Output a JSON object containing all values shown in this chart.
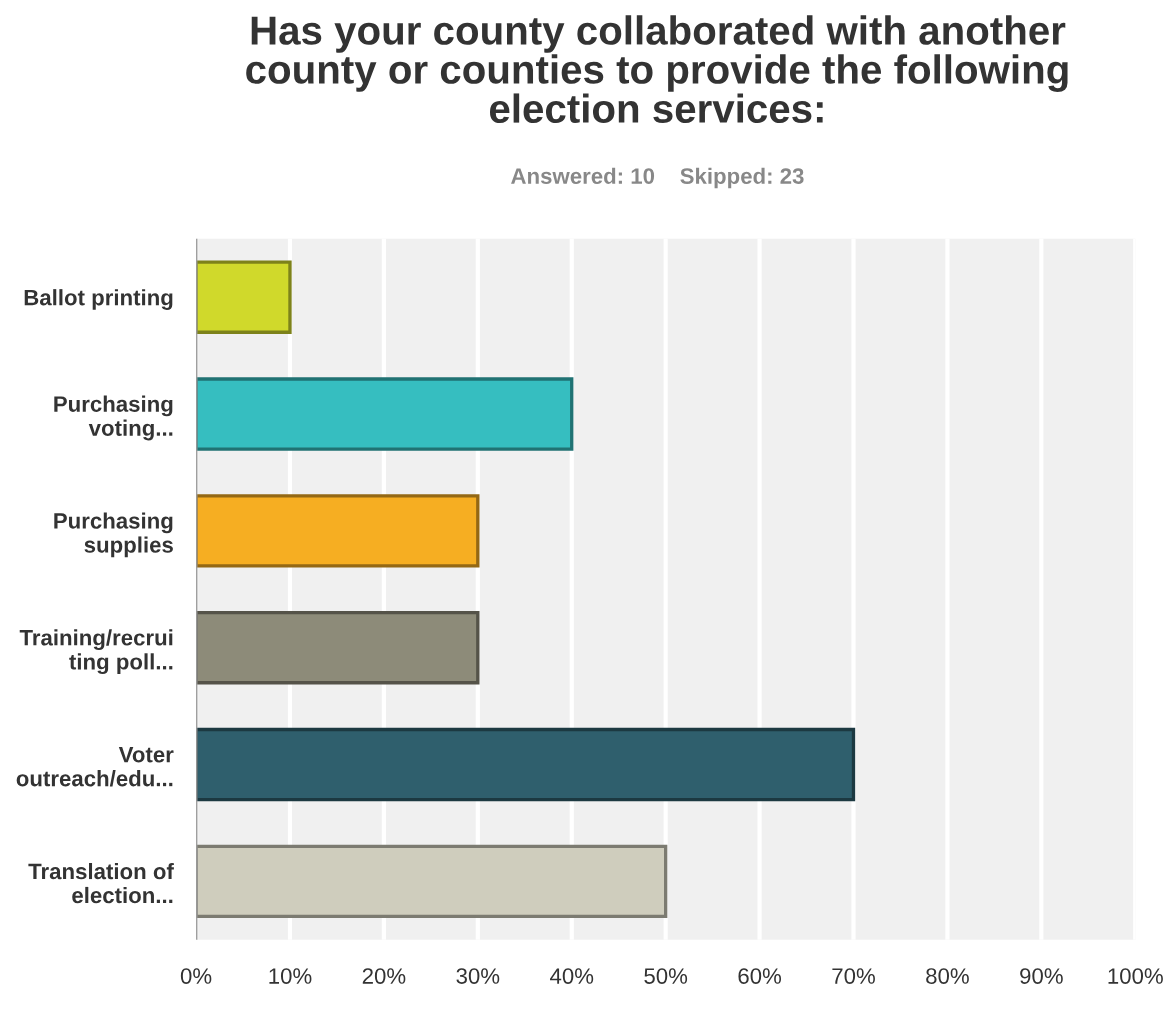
{
  "chart_data": {
    "type": "bar",
    "orientation": "horizontal",
    "title": "Has your county collaborated with another\ncounty or counties to provide the following\nelection services:",
    "subtitle": "Answered: 10    Skipped: 23",
    "categories": [
      "Ballot printing",
      "Purchasing\nvoting...",
      "Purchasing\nsupplies",
      "Training/recrui\nting poll...",
      "Voter\noutreach/edu...",
      "Translation of\nelection..."
    ],
    "values": [
      10,
      40,
      30,
      30,
      70,
      50
    ],
    "colors": [
      "#d0d92b",
      "#36bec0",
      "#f6ae22",
      "#8d8b79",
      "#2f5f6d",
      "#cfcdbd"
    ],
    "xlim": [
      0,
      100
    ],
    "xticks": [
      {
        "value": 0,
        "label": "0%"
      },
      {
        "value": 10,
        "label": "10%"
      },
      {
        "value": 20,
        "label": "20%"
      },
      {
        "value": 30,
        "label": "30%"
      },
      {
        "value": 40,
        "label": "40%"
      },
      {
        "value": 50,
        "label": "50%"
      },
      {
        "value": 60,
        "label": "60%"
      },
      {
        "value": 70,
        "label": "70%"
      },
      {
        "value": 80,
        "label": "80%"
      },
      {
        "value": 90,
        "label": "90%"
      },
      {
        "value": 100,
        "label": "100%"
      }
    ],
    "grid": "x",
    "legend": false
  }
}
